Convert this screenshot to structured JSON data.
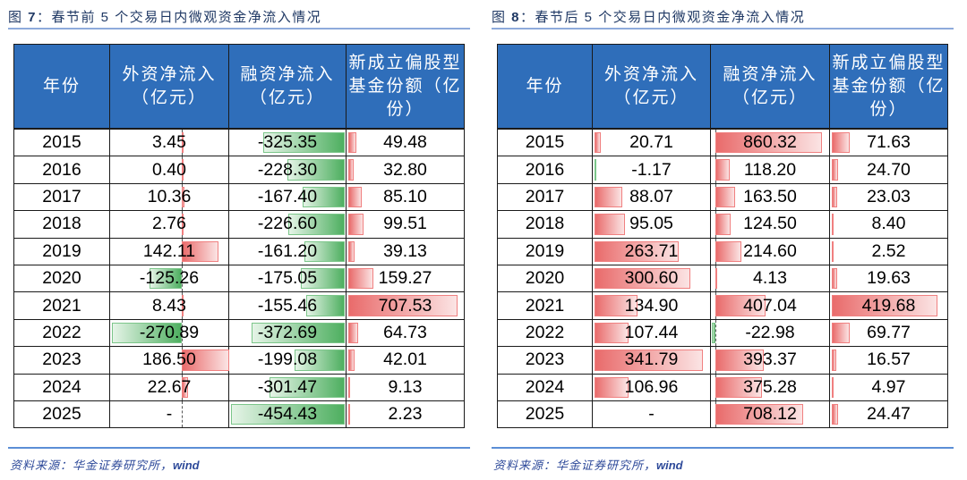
{
  "left": {
    "figure_label": "图 ",
    "figure_num": "7",
    "figure_title": "：春节前 5 个交易日内微观资金净流入情况",
    "columns": [
      {
        "label": "年份"
      },
      {
        "label": "外资净流入（亿元）"
      },
      {
        "label": "融资净流入（亿元）"
      },
      {
        "label": "新成立偏股型基金份额（亿份）"
      }
    ],
    "rows": [
      {
        "year": "2015",
        "foreign": "3.45",
        "margin": "-325.35",
        "fund": "49.48"
      },
      {
        "year": "2016",
        "foreign": "0.40",
        "margin": "-228.30",
        "fund": "32.80"
      },
      {
        "year": "2017",
        "foreign": "10.36",
        "margin": "-167.40",
        "fund": "85.10"
      },
      {
        "year": "2018",
        "foreign": "2.76",
        "margin": "-226.60",
        "fund": "99.51"
      },
      {
        "year": "2019",
        "foreign": "142.11",
        "margin": "-161.20",
        "fund": "39.13"
      },
      {
        "year": "2020",
        "foreign": "-125.26",
        "margin": "-175.05",
        "fund": "159.27"
      },
      {
        "year": "2021",
        "foreign": "8.43",
        "margin": "-155.46",
        "fund": "707.53"
      },
      {
        "year": "2022",
        "foreign": "-270.89",
        "margin": "-372.69",
        "fund": "64.73"
      },
      {
        "year": "2023",
        "foreign": "186.50",
        "margin": "-199.08",
        "fund": "42.01"
      },
      {
        "year": "2024",
        "foreign": "22.67",
        "margin": "-301.47",
        "fund": "9.13"
      },
      {
        "year": "2025",
        "foreign": "-",
        "margin": "-454.43",
        "fund": "2.23"
      }
    ],
    "bar_axes": {
      "foreign": 0.605,
      "margin": 1.0,
      "fund": 0.0
    },
    "bar_scales": {
      "foreign": 0.00222,
      "margin": 0.0022,
      "fund": 0.00135
    },
    "source": "资料来源：华金证券研究所，",
    "source_en": "wind"
  },
  "right": {
    "figure_label": "图 ",
    "figure_num": "8",
    "figure_title": "：春节后 5 个交易日内微观资金净流入情况",
    "columns": [
      {
        "label": "年份"
      },
      {
        "label": "外资净流入（亿元）"
      },
      {
        "label": "融资净流入（亿元）"
      },
      {
        "label": "新成立偏股型基金份额（亿份）"
      }
    ],
    "rows": [
      {
        "year": "2015",
        "foreign": "20.71",
        "margin": "860.32",
        "fund": "71.63"
      },
      {
        "year": "2016",
        "foreign": "-1.17",
        "margin": "118.20",
        "fund": "24.70"
      },
      {
        "year": "2017",
        "foreign": "88.07",
        "margin": "163.50",
        "fund": "23.03"
      },
      {
        "year": "2018",
        "foreign": "95.05",
        "margin": "124.50",
        "fund": "8.40"
      },
      {
        "year": "2019",
        "foreign": "263.71",
        "margin": "214.60",
        "fund": "2.52"
      },
      {
        "year": "2020",
        "foreign": "300.60",
        "margin": "4.13",
        "fund": "19.63"
      },
      {
        "year": "2021",
        "foreign": "134.90",
        "margin": "407.04",
        "fund": "419.68"
      },
      {
        "year": "2022",
        "foreign": "107.44",
        "margin": "-22.98",
        "fund": "69.77"
      },
      {
        "year": "2023",
        "foreign": "341.79",
        "margin": "393.37",
        "fund": "16.57"
      },
      {
        "year": "2024",
        "foreign": "106.96",
        "margin": "375.28",
        "fund": "4.97"
      },
      {
        "year": "2025",
        "foreign": "-",
        "margin": "708.12",
        "fund": "24.47"
      }
    ],
    "bar_axes": {
      "foreign": 0.0,
      "margin": 0.02,
      "fund": 0.0
    },
    "bar_scales": {
      "foreign": 0.00277,
      "margin": 0.00108,
      "fund": 0.0022
    },
    "source": "资料来源：华金证券研究所，",
    "source_en": "wind"
  },
  "colors": {
    "header_bg": "#2F6EBA",
    "title_text": "#1F3864",
    "positive_bar": "#E96B6B",
    "negative_bar": "#4EAF60",
    "source_text": "#2E4A9A"
  }
}
